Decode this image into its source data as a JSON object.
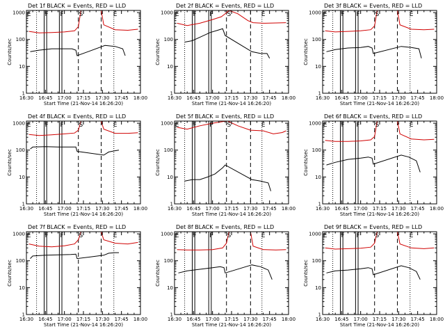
{
  "figure": {
    "xlabel": "Start Time (21-Nov-14 16:26:20)",
    "ylabel": "Counts/sec",
    "x_tick_labels": [
      "16:30",
      "16:45",
      "17:00",
      "17:15",
      "17:30",
      "17:45",
      "18:00"
    ],
    "y_tick_labels": [
      "1",
      "10",
      "100",
      "1000"
    ],
    "colors": {
      "events": "#000000",
      "lld": "#d00000"
    }
  },
  "chart_data": [
    {
      "type": "line",
      "title": "Det 1f BLACK = Events, RED = LLD",
      "xlim": [
        "16:30",
        "18:00"
      ],
      "ylim": [
        1,
        1200
      ],
      "y_scale": "log",
      "region_markers": [
        {
          "label": "E",
          "time": "16:32"
        },
        {
          "label": "F",
          "time": "16:46"
        },
        {
          "label": "F",
          "time": "16:58"
        },
        {
          "label": "S",
          "time": "17:13"
        },
        {
          "label": "E",
          "time": "17:40"
        }
      ],
      "solid_lines": [
        "16:44",
        "16:46",
        "16:56",
        "16:58"
      ],
      "dashed_lines": [
        "17:11",
        "17:29"
      ],
      "dotted_lines": [
        "16:38",
        "17:39"
      ],
      "series": [
        {
          "name": "LLD",
          "color": "#d00000",
          "x": [
            "16:32",
            "16:40",
            "16:50",
            "17:00",
            "17:08",
            "17:11",
            "17:13",
            "17:29",
            "17:31",
            "17:40",
            "17:50",
            "17:58"
          ],
          "y": [
            200,
            175,
            180,
            190,
            210,
            300,
            1200,
            1200,
            350,
            230,
            220,
            240
          ]
        },
        {
          "name": "Events",
          "color": "#000000",
          "x": [
            "16:33",
            "16:40",
            "16:50",
            "17:00",
            "17:06",
            "17:09",
            "17:10",
            "17:32",
            "17:40",
            "17:46",
            "17:48"
          ],
          "y": [
            35,
            40,
            45,
            45,
            45,
            40,
            25,
            60,
            55,
            45,
            25
          ]
        }
      ]
    },
    {
      "type": "line",
      "title": "Det 2f BLACK = Events, RED = LLD",
      "xlim": [
        "16:30",
        "18:00"
      ],
      "ylim": [
        1,
        1200
      ],
      "y_scale": "log",
      "region_markers": [
        {
          "label": "E",
          "time": "16:32"
        },
        {
          "label": "F",
          "time": "16:46"
        },
        {
          "label": "F",
          "time": "16:59"
        },
        {
          "label": "S",
          "time": "17:13"
        },
        {
          "label": "E",
          "time": "17:40"
        }
      ],
      "solid_lines": [
        "16:44",
        "16:46",
        "16:57",
        "16:59"
      ],
      "dashed_lines": [
        "17:11",
        "17:30"
      ],
      "dotted_lines": [
        "16:38",
        "17:39"
      ],
      "series": [
        {
          "name": "LLD",
          "color": "#d00000",
          "x": [
            "16:32",
            "16:40",
            "16:50",
            "17:00",
            "17:07",
            "17:10",
            "17:13",
            "17:20",
            "17:28",
            "17:32",
            "17:40",
            "17:50",
            "17:58"
          ],
          "y": [
            400,
            330,
            400,
            550,
            700,
            900,
            1200,
            900,
            500,
            420,
            400,
            410,
            420
          ]
        },
        {
          "name": "Events",
          "color": "#000000",
          "x": [
            "16:38",
            "16:44",
            "16:50",
            "16:58",
            "17:04",
            "17:08",
            "17:10",
            "17:31",
            "17:38",
            "17:43",
            "17:45"
          ],
          "y": [
            80,
            90,
            120,
            180,
            220,
            250,
            140,
            35,
            30,
            30,
            20
          ]
        }
      ]
    },
    {
      "type": "line",
      "title": "Det 3f BLACK = Events, RED = LLD",
      "xlim": [
        "16:30",
        "18:00"
      ],
      "ylim": [
        1,
        1200
      ],
      "y_scale": "log",
      "region_markers": [
        {
          "label": "E",
          "time": "16:32"
        },
        {
          "label": "F",
          "time": "16:46"
        },
        {
          "label": "F",
          "time": "16:58"
        },
        {
          "label": "S",
          "time": "17:13"
        },
        {
          "label": "E",
          "time": "17:40"
        }
      ],
      "solid_lines": [
        "16:44",
        "16:46",
        "16:56",
        "16:58"
      ],
      "dashed_lines": [
        "17:11",
        "17:29"
      ],
      "dotted_lines": [
        "16:38",
        "17:39"
      ],
      "series": [
        {
          "name": "LLD",
          "color": "#d00000",
          "x": [
            "16:32",
            "16:40",
            "16:50",
            "17:00",
            "17:08",
            "17:11",
            "17:13",
            "17:29",
            "17:31",
            "17:40",
            "17:50",
            "17:58"
          ],
          "y": [
            210,
            190,
            200,
            210,
            230,
            320,
            1200,
            1200,
            350,
            240,
            230,
            240
          ]
        },
        {
          "name": "Events",
          "color": "#000000",
          "x": [
            "16:33",
            "16:40",
            "16:50",
            "17:00",
            "17:06",
            "17:09",
            "17:10",
            "17:32",
            "17:40",
            "17:46",
            "17:48"
          ],
          "y": [
            35,
            42,
            48,
            50,
            55,
            48,
            30,
            55,
            50,
            45,
            20
          ]
        }
      ]
    },
    {
      "type": "line",
      "title": "Det 4f BLACK = Events, RED = LLD",
      "xlim": [
        "16:30",
        "18:00"
      ],
      "ylim": [
        1,
        1200
      ],
      "y_scale": "log",
      "region_markers": [
        {
          "label": "E",
          "time": "16:32"
        },
        {
          "label": "F",
          "time": "16:46"
        },
        {
          "label": "F",
          "time": "16:58"
        },
        {
          "label": "S",
          "time": "17:13"
        },
        {
          "label": "E",
          "time": "17:40"
        }
      ],
      "solid_lines": [
        "16:44",
        "16:46",
        "16:56",
        "16:58"
      ],
      "dashed_lines": [
        "17:11",
        "17:29"
      ],
      "dotted_lines": [
        "16:38",
        "17:39"
      ],
      "series": [
        {
          "name": "LLD",
          "color": "#d00000",
          "x": [
            "16:32",
            "16:40",
            "16:50",
            "17:00",
            "17:08",
            "17:11",
            "17:13",
            "17:29",
            "17:31",
            "17:40",
            "17:50",
            "17:58"
          ],
          "y": [
            380,
            350,
            370,
            400,
            430,
            550,
            1200,
            1200,
            600,
            420,
            420,
            440
          ]
        },
        {
          "name": "Events",
          "color": "#000000",
          "x": [
            "16:33",
            "16:35",
            "16:45",
            "16:55",
            "17:05",
            "17:09",
            "17:10",
            "17:31",
            "17:35",
            "17:40",
            "17:43"
          ],
          "y": [
            110,
            130,
            135,
            130,
            130,
            130,
            90,
            65,
            85,
            95,
            100
          ]
        }
      ]
    },
    {
      "type": "line",
      "title": "Det 5f BLACK = Events, RED = LLD",
      "xlim": [
        "16:30",
        "18:00"
      ],
      "ylim": [
        1,
        1200
      ],
      "y_scale": "log",
      "region_markers": [
        {
          "label": "E",
          "time": "16:32"
        },
        {
          "label": "F",
          "time": "16:46"
        },
        {
          "label": "F",
          "time": "16:59"
        },
        {
          "label": "S",
          "time": "17:13"
        },
        {
          "label": "E",
          "time": "17:40"
        }
      ],
      "solid_lines": [
        "16:44",
        "16:46",
        "16:57",
        "16:59"
      ],
      "dashed_lines": [
        "17:11",
        "17:30"
      ],
      "dotted_lines": [
        "16:38",
        "17:39"
      ],
      "series": [
        {
          "name": "LLD",
          "color": "#d00000",
          "x": [
            "16:32",
            "16:40",
            "16:50",
            "17:00",
            "17:08",
            "17:12",
            "17:20",
            "17:30",
            "17:40",
            "17:48",
            "17:55",
            "17:58"
          ],
          "y": [
            700,
            600,
            800,
            1000,
            1150,
            1200,
            800,
            550,
            520,
            400,
            450,
            520
          ]
        },
        {
          "name": "Events",
          "color": "#000000",
          "x": [
            "16:38",
            "16:44",
            "16:50",
            "16:56",
            "17:02",
            "17:08",
            "17:10",
            "17:31",
            "17:38",
            "17:44",
            "17:46"
          ],
          "y": [
            7,
            8,
            8,
            10,
            13,
            22,
            28,
            8,
            7,
            6,
            3
          ]
        }
      ]
    },
    {
      "type": "line",
      "title": "Det 6f BLACK = Events, RED = LLD",
      "xlim": [
        "16:30",
        "18:00"
      ],
      "ylim": [
        1,
        1200
      ],
      "y_scale": "log",
      "region_markers": [
        {
          "label": "E",
          "time": "16:32"
        },
        {
          "label": "F",
          "time": "16:46"
        },
        {
          "label": "F",
          "time": "16:58"
        },
        {
          "label": "S",
          "time": "17:13"
        },
        {
          "label": "E",
          "time": "17:40"
        }
      ],
      "solid_lines": [
        "16:44",
        "16:46",
        "16:56",
        "16:58"
      ],
      "dashed_lines": [
        "17:11",
        "17:29"
      ],
      "dotted_lines": [
        "16:38",
        "17:39"
      ],
      "series": [
        {
          "name": "LLD",
          "color": "#d00000",
          "x": [
            "16:32",
            "16:40",
            "16:50",
            "17:00",
            "17:08",
            "17:11",
            "17:13",
            "17:29",
            "17:31",
            "17:40",
            "17:50",
            "17:58"
          ],
          "y": [
            230,
            210,
            210,
            220,
            240,
            320,
            1200,
            1200,
            400,
            260,
            240,
            250
          ]
        },
        {
          "name": "Events",
          "color": "#000000",
          "x": [
            "16:33",
            "16:40",
            "16:50",
            "17:00",
            "17:06",
            "17:09",
            "17:10",
            "17:32",
            "17:38",
            "17:44",
            "17:47"
          ],
          "y": [
            28,
            35,
            45,
            50,
            55,
            50,
            30,
            65,
            55,
            40,
            15
          ]
        }
      ]
    },
    {
      "type": "line",
      "title": "Det 7f BLACK = Events, RED = LLD",
      "xlim": [
        "16:30",
        "18:00"
      ],
      "ylim": [
        1,
        1200
      ],
      "y_scale": "log",
      "region_markers": [
        {
          "label": "E",
          "time": "16:32"
        },
        {
          "label": "F",
          "time": "16:46"
        },
        {
          "label": "F",
          "time": "16:58"
        },
        {
          "label": "S",
          "time": "17:13"
        },
        {
          "label": "E",
          "time": "17:40"
        }
      ],
      "solid_lines": [
        "16:44",
        "16:46",
        "16:56",
        "16:58"
      ],
      "dashed_lines": [
        "17:11",
        "17:29"
      ],
      "dotted_lines": [
        "16:38",
        "17:39"
      ],
      "series": [
        {
          "name": "LLD",
          "color": "#d00000",
          "x": [
            "16:32",
            "16:40",
            "16:50",
            "17:00",
            "17:08",
            "17:11",
            "17:13",
            "17:29",
            "17:31",
            "17:40",
            "17:50",
            "17:58"
          ],
          "y": [
            420,
            350,
            330,
            360,
            420,
            600,
            1200,
            1200,
            600,
            450,
            420,
            480
          ]
        },
        {
          "name": "Events",
          "color": "#000000",
          "x": [
            "16:33",
            "16:35",
            "16:45",
            "16:55",
            "17:05",
            "17:09",
            "17:10",
            "17:31",
            "17:35",
            "17:40",
            "17:43"
          ],
          "y": [
            120,
            150,
            160,
            165,
            170,
            175,
            120,
            160,
            190,
            200,
            200
          ]
        }
      ]
    },
    {
      "type": "line",
      "title": "Det 8f BLACK = Events, RED = LLD",
      "xlim": [
        "16:30",
        "18:00"
      ],
      "ylim": [
        1,
        1200
      ],
      "y_scale": "log",
      "region_markers": [
        {
          "label": "E",
          "time": "16:32"
        },
        {
          "label": "F",
          "time": "16:46"
        },
        {
          "label": "F",
          "time": "16:59"
        },
        {
          "label": "S",
          "time": "17:13"
        },
        {
          "label": "E",
          "time": "17:40"
        }
      ],
      "solid_lines": [
        "16:44",
        "16:46",
        "16:57",
        "16:59"
      ],
      "dashed_lines": [
        "17:11",
        "17:30"
      ],
      "dotted_lines": [
        "16:38",
        "17:39"
      ],
      "series": [
        {
          "name": "LLD",
          "color": "#d00000",
          "x": [
            "16:32",
            "16:40",
            "16:50",
            "17:00",
            "17:08",
            "17:11",
            "17:13",
            "17:30",
            "17:32",
            "17:40",
            "17:50",
            "17:58"
          ],
          "y": [
            260,
            250,
            250,
            260,
            300,
            450,
            1200,
            1200,
            350,
            260,
            250,
            260
          ]
        },
        {
          "name": "Events",
          "color": "#000000",
          "x": [
            "16:33",
            "16:40",
            "16:50",
            "17:00",
            "17:06",
            "17:09",
            "17:10",
            "17:31",
            "17:38",
            "17:44",
            "17:47"
          ],
          "y": [
            35,
            42,
            48,
            55,
            60,
            55,
            35,
            70,
            60,
            45,
            20
          ]
        }
      ]
    },
    {
      "type": "line",
      "title": "Det 9f BLACK = Events, RED = LLD",
      "xlim": [
        "16:30",
        "18:00"
      ],
      "ylim": [
        1,
        1200
      ],
      "y_scale": "log",
      "region_markers": [
        {
          "label": "E",
          "time": "16:32"
        },
        {
          "label": "F",
          "time": "16:46"
        },
        {
          "label": "F",
          "time": "16:58"
        },
        {
          "label": "S",
          "time": "17:13"
        },
        {
          "label": "E",
          "time": "17:40"
        }
      ],
      "solid_lines": [
        "16:44",
        "16:46",
        "16:56",
        "16:58"
      ],
      "dashed_lines": [
        "17:11",
        "17:29"
      ],
      "dotted_lines": [
        "16:38",
        "17:39"
      ],
      "series": [
        {
          "name": "LLD",
          "color": "#d00000",
          "x": [
            "16:32",
            "16:40",
            "16:50",
            "17:00",
            "17:08",
            "17:11",
            "17:13",
            "17:29",
            "17:31",
            "17:40",
            "17:50",
            "17:58"
          ],
          "y": [
            300,
            270,
            280,
            290,
            320,
            450,
            1200,
            1200,
            420,
            300,
            280,
            300
          ]
        },
        {
          "name": "Events",
          "color": "#000000",
          "x": [
            "16:33",
            "16:40",
            "16:50",
            "17:00",
            "17:06",
            "17:09",
            "17:10",
            "17:32",
            "17:38",
            "17:44",
            "17:47"
          ],
          "y": [
            35,
            42,
            45,
            50,
            55,
            50,
            30,
            65,
            55,
            40,
            20
          ]
        }
      ]
    }
  ]
}
